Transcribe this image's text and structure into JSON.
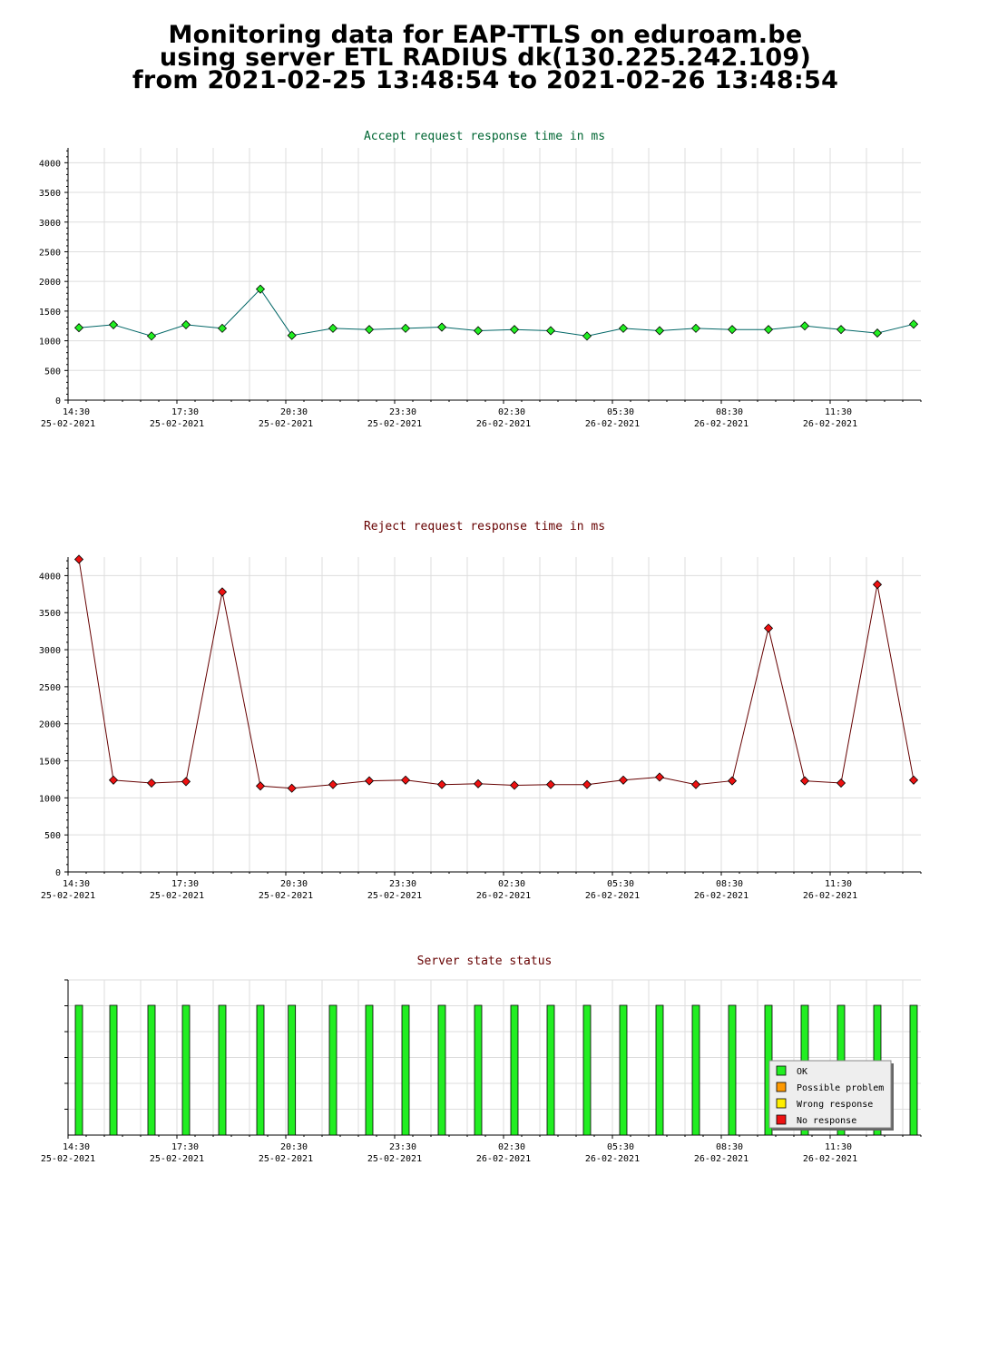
{
  "page": {
    "title_lines": [
      "Monitoring data for EAP-TTLS on eduroam.be",
      "using server ETL RADIUS dk(130.225.242.109)",
      "from 2021-02-25 13:48:54 to 2021-02-26 13:48:54"
    ]
  },
  "colors": {
    "ok": "#22ee22",
    "possible_problem": "#ff9900",
    "wrong_response": "#ffee00",
    "no_response": "#ee1111",
    "accept_title": "#006633",
    "reject_title": "#660000",
    "grid": "#dddddd"
  },
  "x_ticks": [
    {
      "time": "14:30",
      "date": "25-02-2021"
    },
    {
      "time": "17:30",
      "date": "25-02-2021"
    },
    {
      "time": "20:30",
      "date": "25-02-2021"
    },
    {
      "time": "23:30",
      "date": "25-02-2021"
    },
    {
      "time": "02:30",
      "date": "26-02-2021"
    },
    {
      "time": "05:30",
      "date": "26-02-2021"
    },
    {
      "time": "08:30",
      "date": "26-02-2021"
    },
    {
      "time": "11:30",
      "date": "26-02-2021"
    }
  ],
  "chart_data": [
    {
      "type": "line",
      "title": "Accept request response time in ms",
      "xlabel": "",
      "ylabel": "",
      "ylim": [
        0,
        4250
      ],
      "yticks": [
        0,
        500,
        1000,
        1500,
        2000,
        2500,
        3000,
        3500,
        4000
      ],
      "grid": true,
      "x": [
        "2021-02-25 14:48",
        "2021-02-25 15:45",
        "2021-02-25 16:48",
        "2021-02-25 17:45",
        "2021-02-25 18:45",
        "2021-02-25 19:48",
        "2021-02-25 20:40",
        "2021-02-25 21:48",
        "2021-02-25 22:48",
        "2021-02-25 23:48",
        "2021-02-26 00:48",
        "2021-02-26 01:48",
        "2021-02-26 02:48",
        "2021-02-26 03:48",
        "2021-02-26 04:48",
        "2021-02-26 05:48",
        "2021-02-26 06:48",
        "2021-02-26 07:48",
        "2021-02-26 08:48",
        "2021-02-26 09:48",
        "2021-02-26 10:48",
        "2021-02-26 11:48",
        "2021-02-26 12:48",
        "2021-02-26 13:48"
      ],
      "values": [
        1220,
        1270,
        1080,
        1270,
        1210,
        1870,
        1090,
        1210,
        1190,
        1210,
        1230,
        1170,
        1190,
        1170,
        1080,
        1210,
        1170,
        1210,
        1190,
        1190,
        1250,
        1190,
        1130,
        1280
      ]
    },
    {
      "type": "line",
      "title": "Reject request response time in ms",
      "xlabel": "",
      "ylabel": "",
      "ylim": [
        0,
        4250
      ],
      "yticks": [
        0,
        500,
        1000,
        1500,
        2000,
        2500,
        3000,
        3500,
        4000
      ],
      "grid": true,
      "x": [
        "2021-02-25 14:48",
        "2021-02-25 15:45",
        "2021-02-25 16:48",
        "2021-02-25 17:45",
        "2021-02-25 18:45",
        "2021-02-25 19:48",
        "2021-02-25 20:40",
        "2021-02-25 21:48",
        "2021-02-25 22:48",
        "2021-02-25 23:48",
        "2021-02-26 00:48",
        "2021-02-26 01:48",
        "2021-02-26 02:48",
        "2021-02-26 03:48",
        "2021-02-26 04:48",
        "2021-02-26 05:48",
        "2021-02-26 06:48",
        "2021-02-26 07:48",
        "2021-02-26 08:48",
        "2021-02-26 09:48",
        "2021-02-26 10:48",
        "2021-02-26 11:48",
        "2021-02-26 12:48",
        "2021-02-26 13:48"
      ],
      "values": [
        4220,
        1240,
        1200,
        1220,
        3780,
        1160,
        1130,
        1180,
        1230,
        1240,
        1180,
        1190,
        1170,
        1180,
        1180,
        1240,
        1280,
        1180,
        1230,
        3290,
        1230,
        1200,
        3880,
        1240
      ]
    },
    {
      "type": "bar",
      "title": "Server state status",
      "xlabel": "",
      "ylabel": "",
      "grid": true,
      "legend_position": "bottom-right",
      "legend": [
        "OK",
        "Possible problem",
        "Wrong response",
        "No response"
      ],
      "x": [
        "2021-02-25 14:48",
        "2021-02-25 15:45",
        "2021-02-25 16:48",
        "2021-02-25 17:45",
        "2021-02-25 18:45",
        "2021-02-25 19:48",
        "2021-02-25 20:40",
        "2021-02-25 21:48",
        "2021-02-25 22:48",
        "2021-02-25 23:48",
        "2021-02-26 00:48",
        "2021-02-26 01:48",
        "2021-02-26 02:48",
        "2021-02-26 03:48",
        "2021-02-26 04:48",
        "2021-02-26 05:48",
        "2021-02-26 06:48",
        "2021-02-26 07:48",
        "2021-02-26 08:48",
        "2021-02-26 09:48",
        "2021-02-26 10:48",
        "2021-02-26 11:48",
        "2021-02-26 12:48",
        "2021-02-26 13:48"
      ],
      "status": [
        "OK",
        "OK",
        "OK",
        "OK",
        "OK",
        "OK",
        "OK",
        "OK",
        "OK",
        "OK",
        "OK",
        "OK",
        "OK",
        "OK",
        "OK",
        "OK",
        "OK",
        "OK",
        "OK",
        "OK",
        "OK",
        "OK",
        "OK",
        "OK"
      ]
    }
  ]
}
